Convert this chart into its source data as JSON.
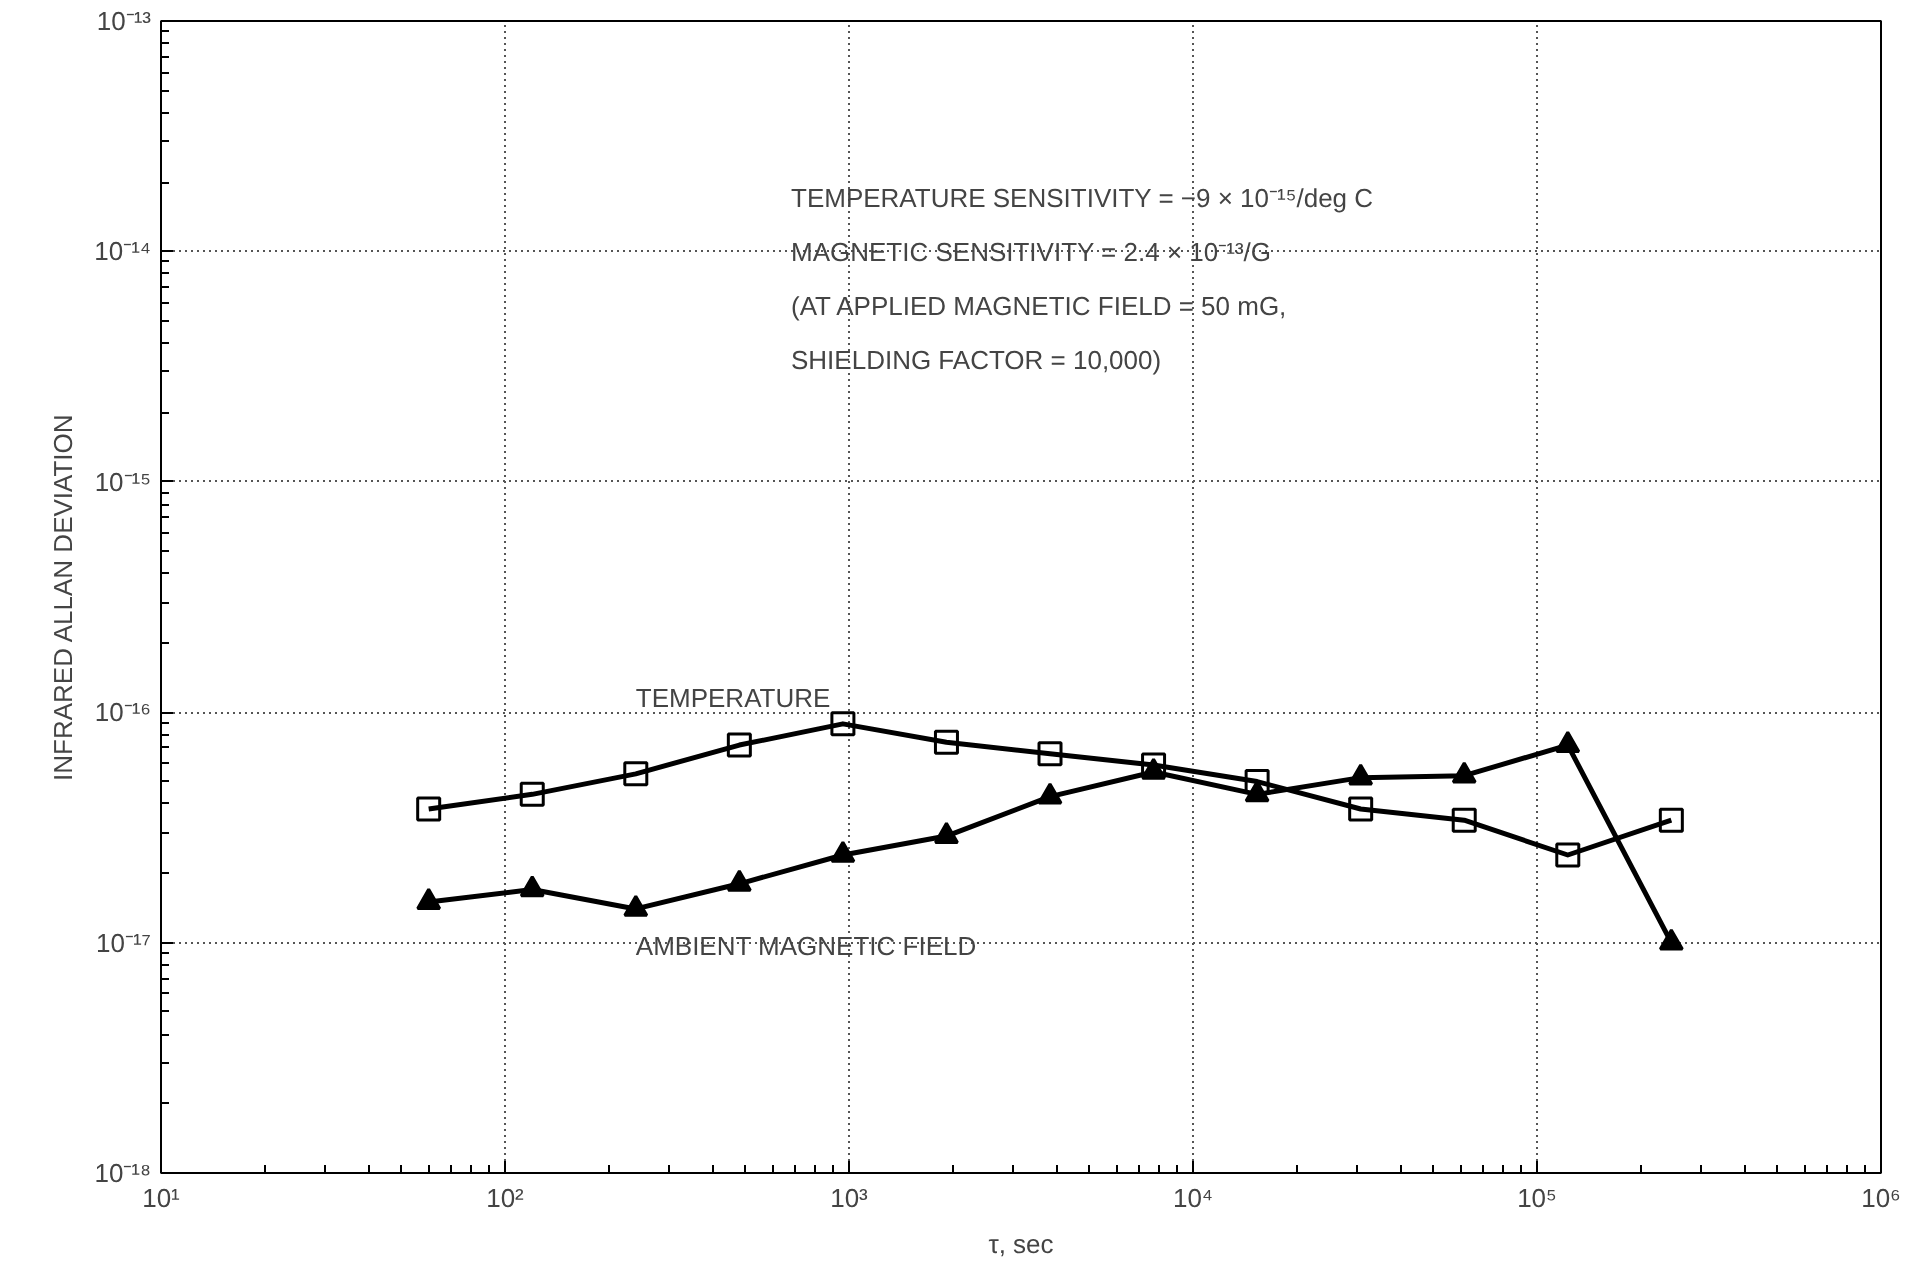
{
  "chart_data": {
    "type": "line",
    "log": "xy",
    "xlabel": "τ, sec",
    "ylabel": "INFRARED ALLAN DEVIATION",
    "x": [
      60,
      120,
      240,
      480,
      960,
      1920,
      3840,
      7680,
      15360,
      30720,
      61440,
      122880,
      245760
    ],
    "series": [
      {
        "name": "TEMPERATURE",
        "color": "#000000",
        "marker": "square",
        "values": [
          3.8e-17,
          4.4e-17,
          5.4e-17,
          7.2e-17,
          8.9e-17,
          7.4e-17,
          6.6e-17,
          5.9e-17,
          5e-17,
          3.8e-17,
          3.4e-17,
          2.4e-17,
          3.4e-17
        ]
      },
      {
        "name": "AMBIENT MAGNETIC FIELD",
        "color": "#000000",
        "marker": "triangle",
        "values": [
          1.5e-17,
          1.7e-17,
          1.4e-17,
          1.8e-17,
          2.4e-17,
          2.9e-17,
          4.3e-17,
          5.5e-17,
          4.4e-17,
          5.2e-17,
          5.3e-17,
          7.2e-17,
          1e-17
        ]
      }
    ],
    "annotations": [
      "TEMPERATURE SENSITIVITY = −9 × 10⁻¹⁵/deg C",
      "MAGNETIC SENSITIVITY = 2.4 × 10⁻¹³/G",
      "(AT APPLIED MAGNETIC FIELD = 50 mG,",
      "SHIELDING FACTOR = 10,000)"
    ],
    "xlim": [
      10,
      1000000
    ],
    "ylim": [
      1e-18,
      1e-13
    ],
    "xticks": [
      {
        "value": 10,
        "label": "10¹"
      },
      {
        "value": 100,
        "label": "10²"
      },
      {
        "value": 1000,
        "label": "10³"
      },
      {
        "value": 10000,
        "label": "10⁴"
      },
      {
        "value": 100000,
        "label": "10⁵"
      },
      {
        "value": 1000000,
        "label": "10⁶"
      }
    ],
    "yticks": [
      {
        "value": 1e-18,
        "label": "10⁻¹⁸"
      },
      {
        "value": 1e-17,
        "label": "10⁻¹⁷"
      },
      {
        "value": 1e-16,
        "label": "10⁻¹⁶"
      },
      {
        "value": 1e-15,
        "label": "10⁻¹⁵"
      },
      {
        "value": 1e-14,
        "label": "10⁻¹⁴"
      },
      {
        "value": 1e-13,
        "label": "10⁻¹³"
      }
    ],
    "grid": true,
    "legend": false,
    "line_style": "solid"
  }
}
